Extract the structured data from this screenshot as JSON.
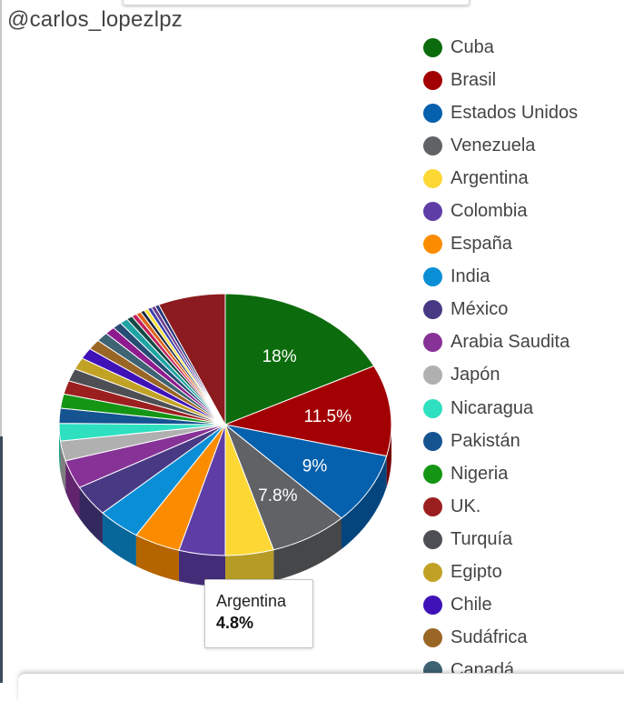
{
  "watermark": "@carlos_lopezlpz",
  "chart_data": {
    "type": "pie",
    "title": "",
    "legend_placement": "right",
    "legend": [
      "Cuba",
      "Brasil",
      "Estados Unidos",
      "Venezuela",
      "Argentina",
      "Colombia",
      "España",
      "India",
      "México",
      "Arabia Saudita",
      "Japón",
      "Nicaragua",
      "Pakistán",
      "Nigeria",
      "UK.",
      "Turquía",
      "Egipto",
      "Chile",
      "Sudáfrica",
      "Canadá"
    ],
    "slices": [
      {
        "label": "Cuba",
        "value": 18,
        "color": "#0c6b0c",
        "value_label": "18%"
      },
      {
        "label": "Brasil",
        "value": 11.5,
        "color": "#a30004",
        "value_label": "11.5%"
      },
      {
        "label": "Estados Unidos",
        "value": 9,
        "color": "#0560ad",
        "value_label": "9%"
      },
      {
        "label": "Venezuela",
        "value": 7.8,
        "color": "#606266",
        "value_label": "7.8%"
      },
      {
        "label": "Argentina",
        "value": 4.8,
        "color": "#fdd835",
        "value_label": ""
      },
      {
        "label": "Colombia",
        "value": 4.6,
        "color": "#5e3ea6",
        "value_label": ""
      },
      {
        "label": "España",
        "value": 4.6,
        "color": "#fb8c00",
        "value_label": ""
      },
      {
        "label": "India",
        "value": 4.3,
        "color": "#0a8ed6",
        "value_label": ""
      },
      {
        "label": "México",
        "value": 3.9,
        "color": "#483984",
        "value_label": ""
      },
      {
        "label": "Arabia Saudita",
        "value": 3.6,
        "color": "#873297",
        "value_label": ""
      },
      {
        "label": "Japón",
        "value": 2.5,
        "color": "#b0b0b0",
        "value_label": ""
      },
      {
        "label": "Nicaragua",
        "value": 2.2,
        "color": "#2ee0c0",
        "value_label": ""
      },
      {
        "label": "Pakistán",
        "value": 1.9,
        "color": "#155491",
        "value_label": ""
      },
      {
        "label": "Nigeria",
        "value": 1.8,
        "color": "#149614",
        "value_label": ""
      },
      {
        "label": "UK.",
        "value": 1.7,
        "color": "#9c1f1f",
        "value_label": ""
      },
      {
        "label": "Turquía",
        "value": 1.6,
        "color": "#4d4f54",
        "value_label": ""
      },
      {
        "label": "Egipto",
        "value": 1.5,
        "color": "#c2a225",
        "value_label": ""
      },
      {
        "label": "Chile",
        "value": 1.4,
        "color": "#3f12b8",
        "value_label": ""
      },
      {
        "label": "Sudáfrica",
        "value": 1.3,
        "color": "#9a6626",
        "value_label": ""
      },
      {
        "label": "Canadá",
        "value": 1.2,
        "color": "#3e6373",
        "value_label": ""
      },
      {
        "label": "",
        "value": 1.0,
        "color": "#8e1b8e",
        "value_label": ""
      },
      {
        "label": "",
        "value": 0.9,
        "color": "#264d73",
        "value_label": ""
      },
      {
        "label": "",
        "value": 0.8,
        "color": "#1ea4a4",
        "value_label": ""
      },
      {
        "label": "",
        "value": 0.6,
        "color": "#134a46",
        "value_label": ""
      },
      {
        "label": "",
        "value": 0.5,
        "color": "#c21f5a",
        "value_label": ""
      },
      {
        "label": "",
        "value": 0.5,
        "color": "#e0661a",
        "value_label": ""
      },
      {
        "label": "",
        "value": 0.4,
        "color": "#1a2640",
        "value_label": ""
      },
      {
        "label": "",
        "value": 0.4,
        "color": "#f5e03a",
        "value_label": ""
      },
      {
        "label": "",
        "value": 0.4,
        "color": "#3a3fa8",
        "value_label": ""
      },
      {
        "label": "",
        "value": 0.4,
        "color": "#6b3b8c",
        "value_label": ""
      },
      {
        "label": "",
        "value": 0.4,
        "color": "#27357a",
        "value_label": ""
      },
      {
        "label": "",
        "value": 6.7,
        "color": "#8b1b1e",
        "value_label": ""
      }
    ]
  },
  "tooltip": {
    "name": "Argentina",
    "value": "4.8%"
  }
}
